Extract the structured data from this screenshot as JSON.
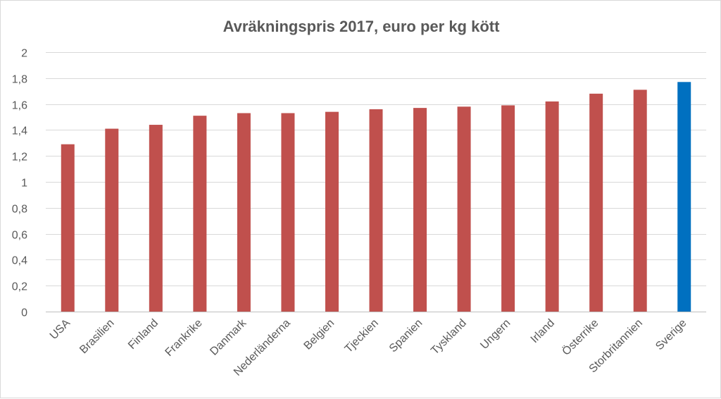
{
  "chart_data": {
    "type": "bar",
    "title": "Avräkningspris 2017, euro per kg kött",
    "xlabel": "",
    "ylabel": "",
    "categories": [
      "USA",
      "Brasilien",
      "Finland",
      "Frankrike",
      "Danmark",
      "Nederländerna",
      "Belgien",
      "Tjeckien",
      "Spanien",
      "Tyskland",
      "Ungern",
      "Irland",
      "Österrike",
      "Storbritannien",
      "Sverige"
    ],
    "values": [
      1.29,
      1.41,
      1.44,
      1.51,
      1.53,
      1.53,
      1.54,
      1.56,
      1.57,
      1.58,
      1.59,
      1.62,
      1.68,
      1.71,
      1.77
    ],
    "ylim": [
      0,
      2
    ],
    "yticks": [
      0,
      0.2,
      0.4,
      0.6,
      0.8,
      1,
      1.2,
      1.4,
      1.6,
      1.8,
      2
    ],
    "ytick_labels": [
      "0",
      "0,2",
      "0,4",
      "0,6",
      "0,8",
      "1",
      "1,2",
      "1,4",
      "1,6",
      "1,8",
      "2"
    ],
    "grid": true,
    "legend": "none",
    "colors": {
      "default_bar": "#c0504d",
      "highlight_bar": "#0070c0",
      "highlight_category": "Sverige",
      "grid": "#d9d9d9",
      "text": "#595959"
    }
  }
}
